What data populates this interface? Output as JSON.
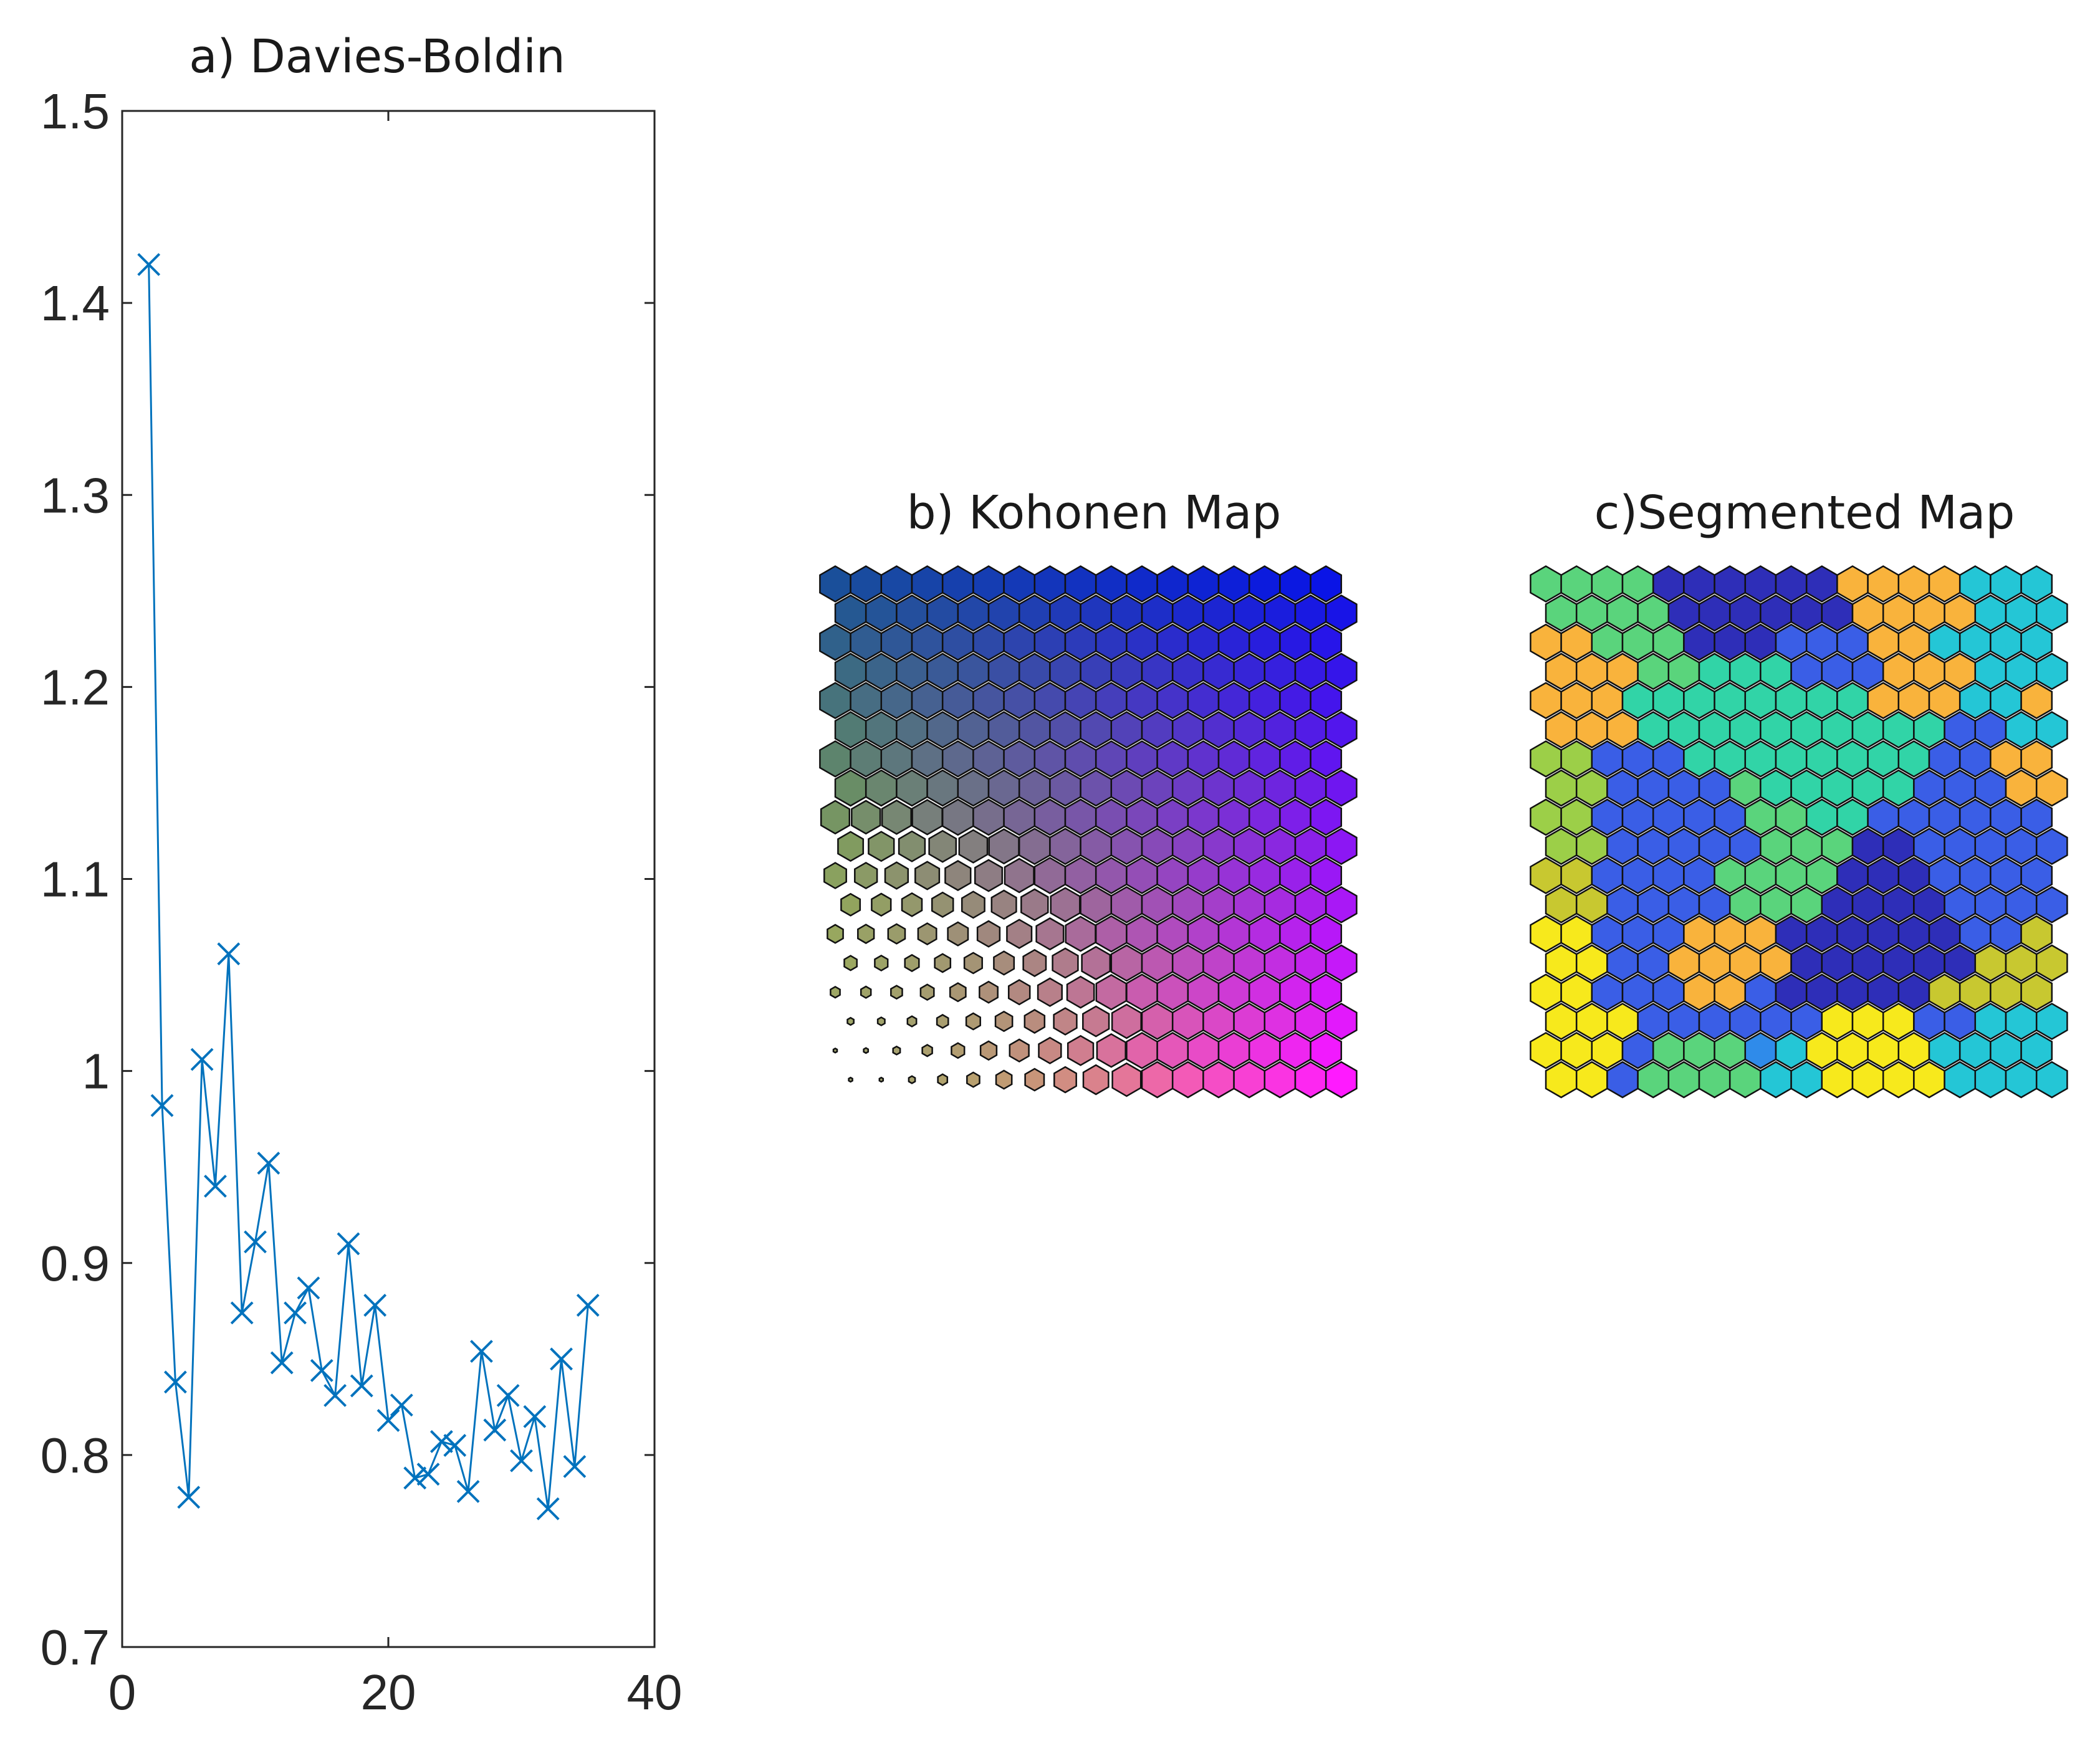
{
  "chart_data": [
    {
      "type": "line",
      "title": "a) Davies-Boldin",
      "xlabel": "",
      "ylabel": "",
      "xlim": [
        0,
        40
      ],
      "ylim": [
        0.7,
        1.5
      ],
      "xticks": [
        "0",
        "20",
        "40"
      ],
      "yticks": [
        "0.7",
        "0.8",
        "0.9",
        "1",
        "1.1",
        "1.2",
        "1.3",
        "1.4",
        "1.5"
      ],
      "marker": "x",
      "line_color": "#0072BD",
      "grid": false,
      "x": [
        2,
        3,
        4,
        5,
        6,
        7,
        8,
        9,
        10,
        11,
        12,
        13,
        14,
        15,
        16,
        17,
        18,
        19,
        20,
        21,
        22,
        23,
        24,
        25,
        26,
        27,
        28,
        29,
        30,
        31,
        32,
        33,
        34,
        35
      ],
      "y": [
        1.42,
        0.982,
        0.838,
        0.778,
        1.006,
        0.94,
        1.061,
        0.874,
        0.911,
        0.952,
        0.848,
        0.874,
        0.887,
        0.844,
        0.831,
        0.91,
        0.836,
        0.878,
        0.818,
        0.826,
        0.788,
        0.79,
        0.807,
        0.805,
        0.781,
        0.854,
        0.813,
        0.831,
        0.797,
        0.82,
        0.772,
        0.85,
        0.794,
        0.878
      ]
    },
    {
      "type": "heatmap",
      "title": "b) Kohonen Map",
      "grid_shape": "hexagonal",
      "rows": 18,
      "cols": 17,
      "colormap_corners": {
        "top_left": "#1a4f9a",
        "top_right": "#0a14e6",
        "bottom_left": "#d8e61a",
        "bottom_right": "#ff1aff"
      },
      "cell_size_varies": true
    },
    {
      "type": "heatmap",
      "title": "c)Segmented Map",
      "grid_shape": "hexagonal",
      "rows": 18,
      "cols": 17,
      "palette": [
        "#2e2eb8",
        "#3a5ee6",
        "#2f8bea",
        "#24c6d6",
        "#31d4a7",
        "#5ad47c",
        "#9ccf48",
        "#c8c830",
        "#f9b33c",
        "#f7e91c"
      ],
      "cells": [
        [
          5,
          5,
          5,
          5,
          0,
          0,
          0,
          0,
          0,
          0,
          8,
          8,
          8,
          8,
          3,
          3,
          3
        ],
        [
          5,
          5,
          5,
          5,
          0,
          0,
          0,
          0,
          0,
          0,
          8,
          8,
          8,
          8,
          3,
          3,
          3
        ],
        [
          8,
          8,
          5,
          5,
          5,
          0,
          0,
          0,
          1,
          1,
          1,
          8,
          8,
          3,
          3,
          3,
          3
        ],
        [
          8,
          8,
          8,
          5,
          5,
          4,
          4,
          4,
          1,
          1,
          1,
          8,
          8,
          8,
          3,
          3,
          3
        ],
        [
          8,
          8,
          8,
          4,
          4,
          4,
          4,
          4,
          4,
          4,
          4,
          8,
          8,
          8,
          3,
          3,
          8
        ],
        [
          8,
          8,
          8,
          4,
          4,
          4,
          4,
          4,
          4,
          4,
          4,
          4,
          4,
          1,
          1,
          3,
          3
        ],
        [
          6,
          6,
          1,
          1,
          1,
          4,
          4,
          4,
          4,
          4,
          4,
          4,
          4,
          1,
          1,
          8,
          8
        ],
        [
          6,
          6,
          1,
          1,
          1,
          1,
          5,
          4,
          4,
          4,
          4,
          4,
          1,
          1,
          1,
          8,
          8
        ],
        [
          6,
          6,
          1,
          1,
          1,
          1,
          1,
          5,
          5,
          4,
          4,
          1,
          1,
          1,
          1,
          1,
          1
        ],
        [
          6,
          6,
          1,
          1,
          1,
          1,
          1,
          5,
          5,
          5,
          0,
          0,
          1,
          1,
          1,
          1,
          1
        ],
        [
          7,
          7,
          1,
          1,
          1,
          1,
          5,
          5,
          5,
          5,
          0,
          0,
          0,
          1,
          1,
          1,
          1
        ],
        [
          7,
          7,
          1,
          1,
          1,
          1,
          5,
          5,
          5,
          0,
          0,
          0,
          0,
          1,
          1,
          1,
          1
        ],
        [
          9,
          9,
          1,
          1,
          1,
          8,
          8,
          8,
          0,
          0,
          0,
          0,
          0,
          0,
          1,
          1,
          7
        ],
        [
          9,
          9,
          1,
          1,
          8,
          8,
          8,
          8,
          0,
          0,
          0,
          0,
          0,
          0,
          7,
          7,
          7
        ],
        [
          9,
          9,
          1,
          1,
          1,
          8,
          8,
          1,
          0,
          0,
          0,
          0,
          0,
          7,
          7,
          7,
          7
        ],
        [
          9,
          9,
          9,
          1,
          1,
          1,
          1,
          1,
          1,
          9,
          9,
          9,
          1,
          1,
          3,
          3,
          3
        ],
        [
          9,
          9,
          9,
          1,
          5,
          5,
          5,
          2,
          3,
          9,
          9,
          9,
          9,
          3,
          3,
          3,
          3
        ],
        [
          9,
          9,
          1,
          5,
          5,
          5,
          5,
          3,
          3,
          9,
          9,
          9,
          9,
          3,
          3,
          3,
          3
        ]
      ]
    }
  ]
}
